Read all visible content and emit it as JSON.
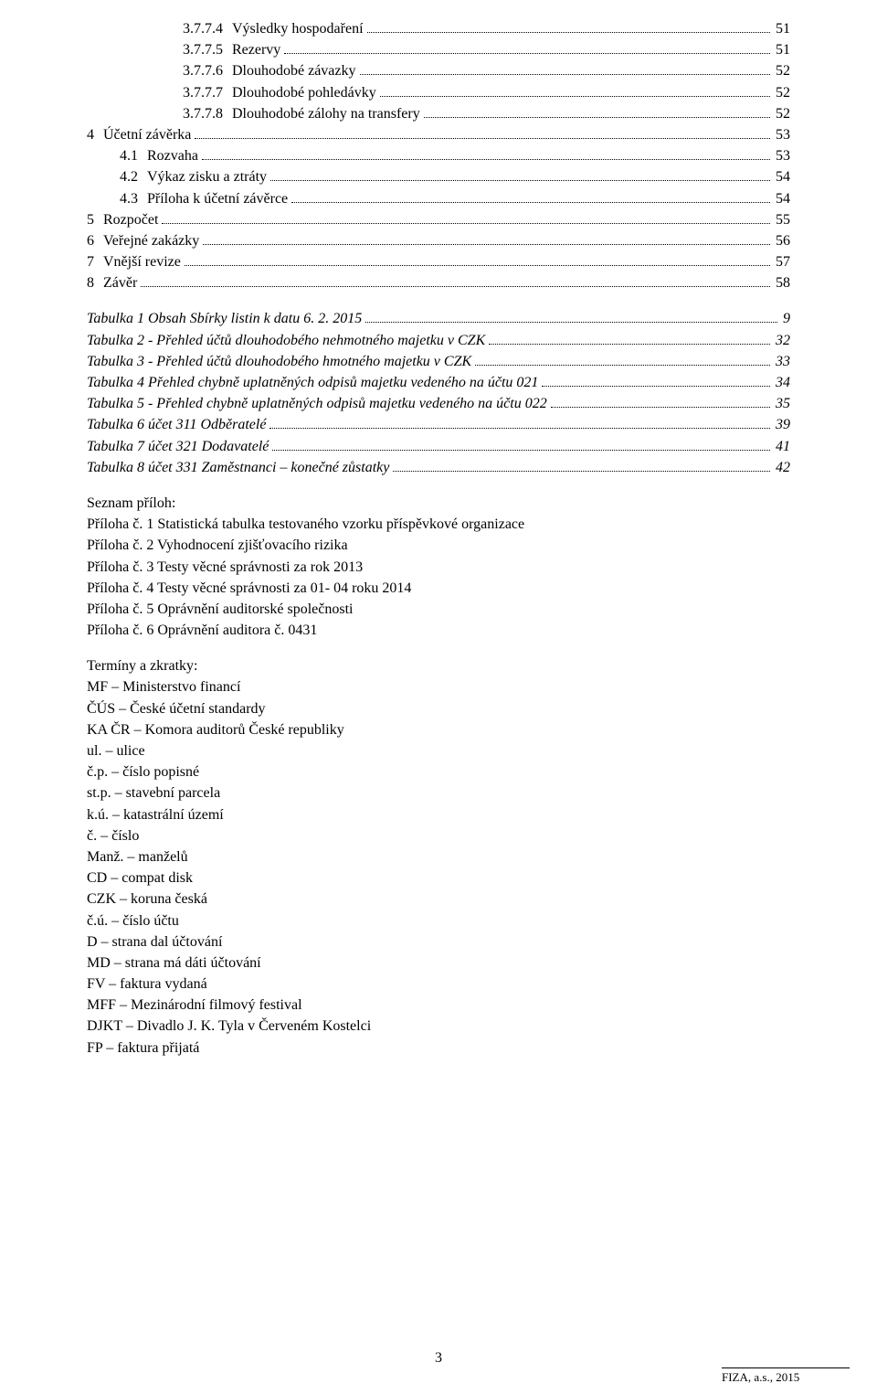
{
  "toc": [
    {
      "indent": 3,
      "num": "3.7.7.4",
      "label": "Výsledky hospodaření",
      "page": "51"
    },
    {
      "indent": 3,
      "num": "3.7.7.5",
      "label": "Rezervy",
      "page": "51"
    },
    {
      "indent": 3,
      "num": "3.7.7.6",
      "label": "Dlouhodobé závazky",
      "page": "52"
    },
    {
      "indent": 3,
      "num": "3.7.7.7",
      "label": "Dlouhodobé pohledávky",
      "page": "52"
    },
    {
      "indent": 3,
      "num": "3.7.7.8",
      "label": "Dlouhodobé zálohy na transfery",
      "page": "52"
    },
    {
      "indent": 0,
      "num": "4",
      "label": "Účetní závěrka",
      "page": "53"
    },
    {
      "indent": 1,
      "num": "4.1",
      "label": "Rozvaha",
      "page": "53"
    },
    {
      "indent": 1,
      "num": "4.2",
      "label": "Výkaz zisku a ztráty",
      "page": "54"
    },
    {
      "indent": 1,
      "num": "4.3",
      "label": "Příloha k účetní závěrce",
      "page": "54"
    },
    {
      "indent": 0,
      "num": "5",
      "label": "Rozpočet",
      "page": "55"
    },
    {
      "indent": 0,
      "num": "6",
      "label": "Veřejné zakázky",
      "page": "56"
    },
    {
      "indent": 0,
      "num": "7",
      "label": "Vnější revize",
      "page": "57"
    },
    {
      "indent": 0,
      "num": "8",
      "label": "Závěr",
      "page": "58"
    }
  ],
  "tables": [
    {
      "label": "Tabulka 1 Obsah Sbírky listin k datu 6. 2. 2015",
      "page": "9"
    },
    {
      "label": "Tabulka 2 - Přehled účtů dlouhodobého nehmotného majetku v CZK",
      "page": "32"
    },
    {
      "label": "Tabulka 3 - Přehled účtů dlouhodobého hmotného majetku v CZK",
      "page": "33"
    },
    {
      "label": "Tabulka 4 Přehled chybně uplatněných odpisů majetku vedeného na účtu 021",
      "page": "34"
    },
    {
      "label": "Tabulka 5 - Přehled chybně uplatněných odpisů majetku vedeného na účtu 022",
      "page": "35"
    },
    {
      "label": "Tabulka 6 účet 311 Odběratelé",
      "page": "39"
    },
    {
      "label": "Tabulka 7 účet 321 Dodavatelé",
      "page": "41"
    },
    {
      "label": "Tabulka 8 účet 331 Zaměstnanci – konečné zůstatky",
      "page": "42"
    }
  ],
  "attachmentsHeader": "Seznam příloh:",
  "attachments": [
    "Příloha č. 1 Statistická tabulka testovaného vzorku příspěvkové organizace",
    "Příloha č. 2 Vyhodnocení zjišťovacího rizika",
    "Příloha č. 3 Testy věcné správnosti za rok 2013",
    "Příloha č. 4 Testy věcné správnosti za 01- 04 roku 2014",
    "Příloha č. 5 Oprávnění auditorské společnosti",
    "Příloha č. 6 Oprávnění auditora č. 0431"
  ],
  "abbrHeader": "Termíny a zkratky:",
  "abbreviations": [
    "MF – Ministerstvo financí",
    "ČÚS – České účetní standardy",
    "KA ČR – Komora auditorů České republiky",
    "ul. – ulice",
    "č.p. – číslo popisné",
    "st.p. – stavební parcela",
    "k.ú. – katastrální území",
    "č. – číslo",
    "Manž. – manželů",
    "CD – compat disk",
    "CZK – koruna česká",
    "č.ú. – číslo účtu",
    "D – strana dal účtování",
    "MD – strana má dáti účtování",
    "FV – faktura vydaná",
    "MFF – Mezinárodní filmový festival",
    "DJKT – Divadlo J. K. Tyla v Červeném Kostelci",
    "FP – faktura přijatá"
  ],
  "pageNumber": "3",
  "footerRight": "FIZA, a.s., 2015"
}
